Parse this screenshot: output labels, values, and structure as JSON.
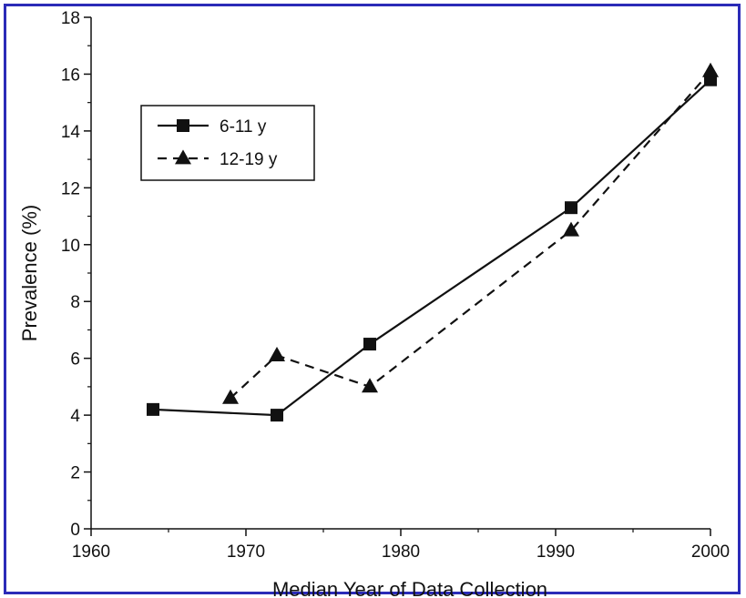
{
  "chart_data": {
    "type": "line",
    "title": "",
    "xlabel": "Median Year of Data Collection",
    "ylabel": "Prevalence (%)",
    "xlim": [
      1960,
      2000
    ],
    "ylim": [
      0,
      18
    ],
    "xticks": [
      1960,
      1970,
      1980,
      1990,
      2000
    ],
    "yticks": [
      0,
      2,
      4,
      6,
      8,
      10,
      12,
      14,
      16,
      18
    ],
    "grid": false,
    "legend_position": "top-left",
    "series": [
      {
        "name": "6-11 y",
        "marker": "square",
        "line_style": "solid",
        "points": [
          {
            "x": 1964,
            "y": 4.2
          },
          {
            "x": 1972,
            "y": 4.0
          },
          {
            "x": 1978,
            "y": 6.5
          },
          {
            "x": 1991,
            "y": 11.3
          },
          {
            "x": 2000,
            "y": 15.8
          }
        ]
      },
      {
        "name": "12-19 y",
        "marker": "triangle",
        "line_style": "dashed",
        "points": [
          {
            "x": 1969,
            "y": 4.6
          },
          {
            "x": 1972,
            "y": 6.1
          },
          {
            "x": 1978,
            "y": 5.0
          },
          {
            "x": 1991,
            "y": 10.5
          },
          {
            "x": 2000,
            "y": 16.1
          }
        ]
      }
    ]
  },
  "colors": {
    "frame_border": "#2b2bb8",
    "ink": "#111111"
  }
}
